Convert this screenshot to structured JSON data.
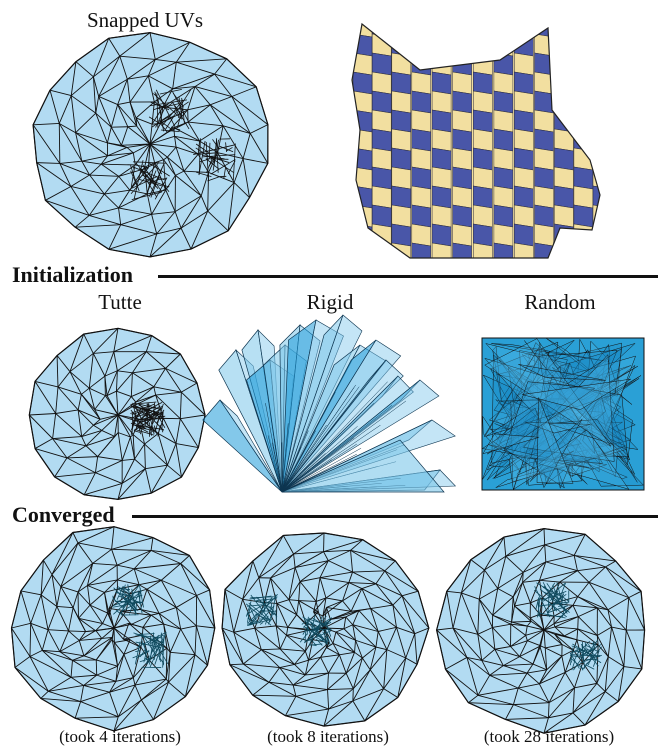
{
  "top": {
    "title": "Snapped UVs"
  },
  "sections": {
    "initialization": "Initialization",
    "converged": "Converged"
  },
  "init_labels": [
    "Tutte",
    "Rigid",
    "Random"
  ],
  "captions": [
    "(took 4 iterations)",
    "(took 8 iterations)",
    "(took 28 iterations)"
  ],
  "colors": {
    "uv_fill": "#b2dbf2",
    "uv_stroke": "#111111",
    "rigid_fill": "#7cc6ea",
    "rigid_dark": "#1d9ad8",
    "checker_blue": "#4956a8",
    "checker_cream": "#f2dfa0"
  }
}
